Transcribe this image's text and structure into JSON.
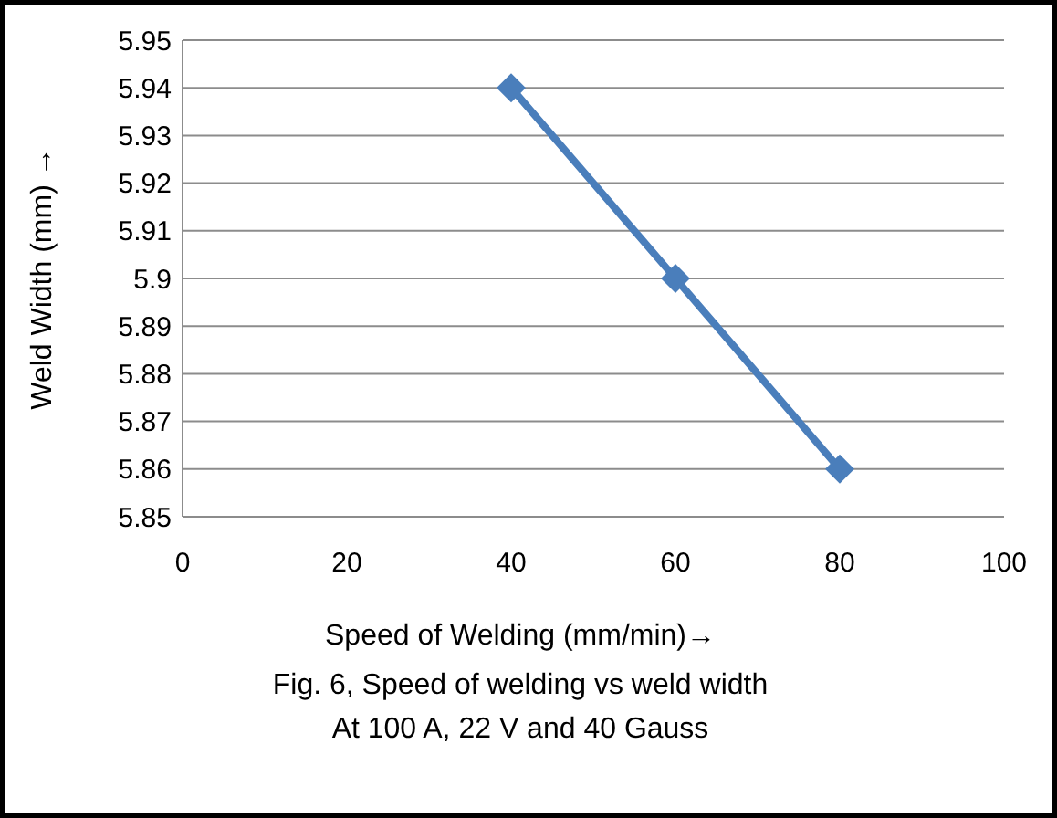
{
  "chart_data": {
    "type": "line",
    "xlabel": "Speed of Welding (mm/min)→",
    "ylabel": "Weld Width (mm) →",
    "x": [
      40,
      60,
      80
    ],
    "series": [
      {
        "color": "#4a7ebb",
        "values": [
          5.94,
          5.9,
          5.86
        ]
      }
    ],
    "xlim": [
      0,
      100
    ],
    "xticks": [
      0,
      20,
      40,
      60,
      80,
      100
    ],
    "ylim": [
      5.85,
      5.95
    ],
    "yticks": [
      5.85,
      5.86,
      5.87,
      5.88,
      5.89,
      5.9,
      5.91,
      5.92,
      5.93,
      5.94,
      5.95
    ],
    "grid": "y",
    "marker": "diamond",
    "line_style": "solid",
    "annotations": [
      "Fig. 6, Speed of welding vs weld width",
      "At  100 A, 22 V and 40 Gauss"
    ]
  }
}
